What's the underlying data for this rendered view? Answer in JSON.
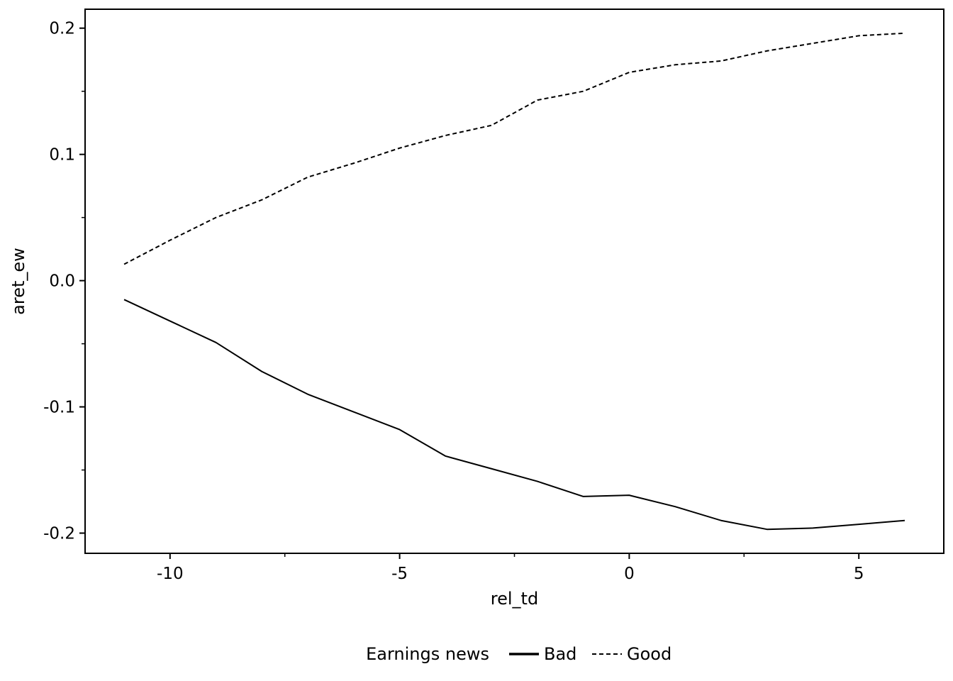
{
  "chart_data": {
    "type": "line",
    "xlabel": "rel_td",
    "ylabel": "aret_ew",
    "xlim": [
      -11.85,
      6.85
    ],
    "ylim": [
      -0.216,
      0.215
    ],
    "x_major_ticks": [
      -10,
      -5,
      0,
      5
    ],
    "x_major_tick_labels": [
      "-10",
      "-5",
      "0",
      "5"
    ],
    "x_minor_ticks": [
      -7.5,
      -2.5,
      2.5
    ],
    "y_major_ticks": [
      -0.2,
      -0.1,
      0.0,
      0.1,
      0.2
    ],
    "y_major_tick_labels": [
      "-0.2",
      "-0.1",
      "0.0",
      "0.1",
      "0.2"
    ],
    "y_minor_ticks": [
      -0.15,
      -0.05,
      0.05,
      0.15
    ],
    "grid": false,
    "legend": {
      "title": "Earnings news",
      "placement": "bottom-center",
      "entries": [
        "Bad",
        "Good"
      ]
    },
    "x": [
      -11,
      -10,
      -9,
      -8,
      -7,
      -6,
      -5,
      -4,
      -3,
      -2,
      -1,
      0,
      1,
      2,
      3,
      4,
      5,
      6
    ],
    "series": [
      {
        "name": "Bad",
        "style": "solid",
        "color": "#000000",
        "values": [
          -0.015,
          -0.032,
          -0.049,
          -0.072,
          -0.09,
          -0.104,
          -0.118,
          -0.139,
          -0.149,
          -0.159,
          -0.171,
          -0.17,
          -0.179,
          -0.19,
          -0.197,
          -0.196,
          -0.193,
          -0.19
        ]
      },
      {
        "name": "Good",
        "style": "dashed",
        "color": "#000000",
        "values": [
          0.013,
          0.032,
          0.05,
          0.064,
          0.082,
          0.093,
          0.105,
          0.115,
          0.123,
          0.143,
          0.15,
          0.165,
          0.171,
          0.174,
          0.182,
          0.188,
          0.194,
          0.196
        ]
      }
    ]
  }
}
